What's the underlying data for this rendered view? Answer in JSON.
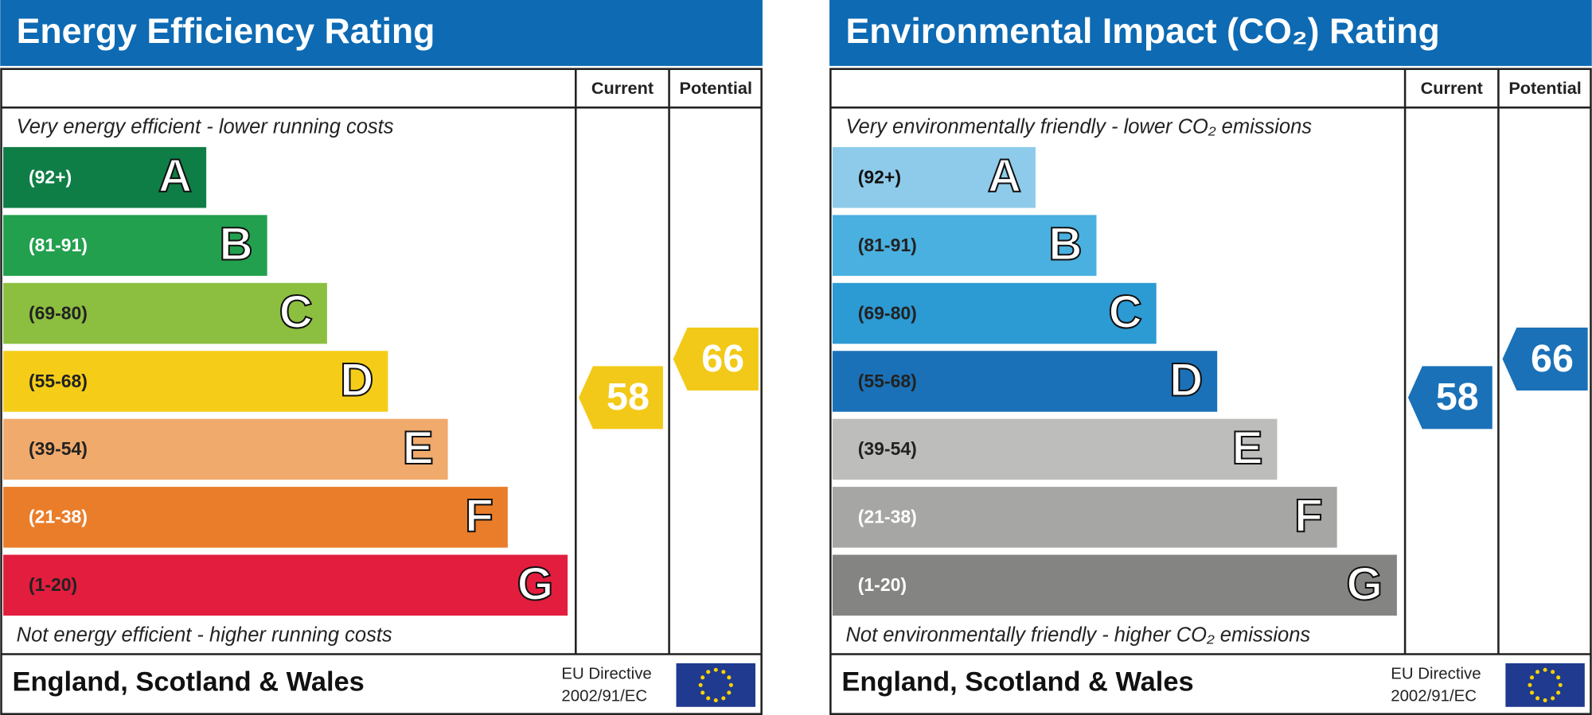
{
  "panels": [
    {
      "title": "Energy Efficiency Rating",
      "header_color": "#0d6ab3",
      "column_headers": [
        "Current",
        "Potential"
      ],
      "top_note": "Very energy efficient - lower running costs",
      "bottom_note": "Not energy efficient - higher running costs",
      "bands": [
        {
          "range": "(92+)",
          "letter": "A",
          "color": "#0f7d46",
          "label_color": "#ffffff"
        },
        {
          "range": "(81-91)",
          "letter": "B",
          "color": "#23a04e",
          "label_color": "#ffffff"
        },
        {
          "range": "(69-80)",
          "letter": "C",
          "color": "#8cbf40",
          "label_color": "#222222"
        },
        {
          "range": "(55-68)",
          "letter": "D",
          "color": "#f5cd18",
          "label_color": "#222222"
        },
        {
          "range": "(39-54)",
          "letter": "E",
          "color": "#f0aa6c",
          "label_color": "#222222"
        },
        {
          "range": "(21-38)",
          "letter": "F",
          "color": "#ea7d2a",
          "label_color": "#ffffff"
        },
        {
          "range": "(1-20)",
          "letter": "G",
          "color": "#e21d3d",
          "label_color": "#222222"
        }
      ],
      "current": 58,
      "potential": 66,
      "rating_color": "#f2c918",
      "footer": "England, Scotland & Wales",
      "directive": [
        "EU Directive",
        "2002/91/EC"
      ]
    },
    {
      "title": "Environmental Impact (CO₂) Rating",
      "header_color": "#0d6ab3",
      "column_headers": [
        "Current",
        "Potential"
      ],
      "top_note": "Very environmentally friendly - lower CO₂ emissions",
      "bottom_note": "Not environmentally friendly - higher CO₂ emissions",
      "bands": [
        {
          "range": "(92+)",
          "letter": "A",
          "color": "#8ecbea",
          "label_color": "#111111"
        },
        {
          "range": "(81-91)",
          "letter": "B",
          "color": "#4ab0e0",
          "label_color": "#222222"
        },
        {
          "range": "(69-80)",
          "letter": "C",
          "color": "#2c9ad3",
          "label_color": "#222222"
        },
        {
          "range": "(55-68)",
          "letter": "D",
          "color": "#1a71b8",
          "label_color": "#222222"
        },
        {
          "range": "(39-54)",
          "letter": "E",
          "color": "#bdbdbb",
          "label_color": "#222222"
        },
        {
          "range": "(21-38)",
          "letter": "F",
          "color": "#a6a6a4",
          "label_color": "#ffffff"
        },
        {
          "range": "(1-20)",
          "letter": "G",
          "color": "#848482",
          "label_color": "#ffffff"
        }
      ],
      "current": 58,
      "potential": 66,
      "rating_color": "#1a71b8",
      "footer": "England, Scotland & Wales",
      "directive": [
        "EU Directive",
        "2002/91/EC"
      ]
    }
  ]
}
